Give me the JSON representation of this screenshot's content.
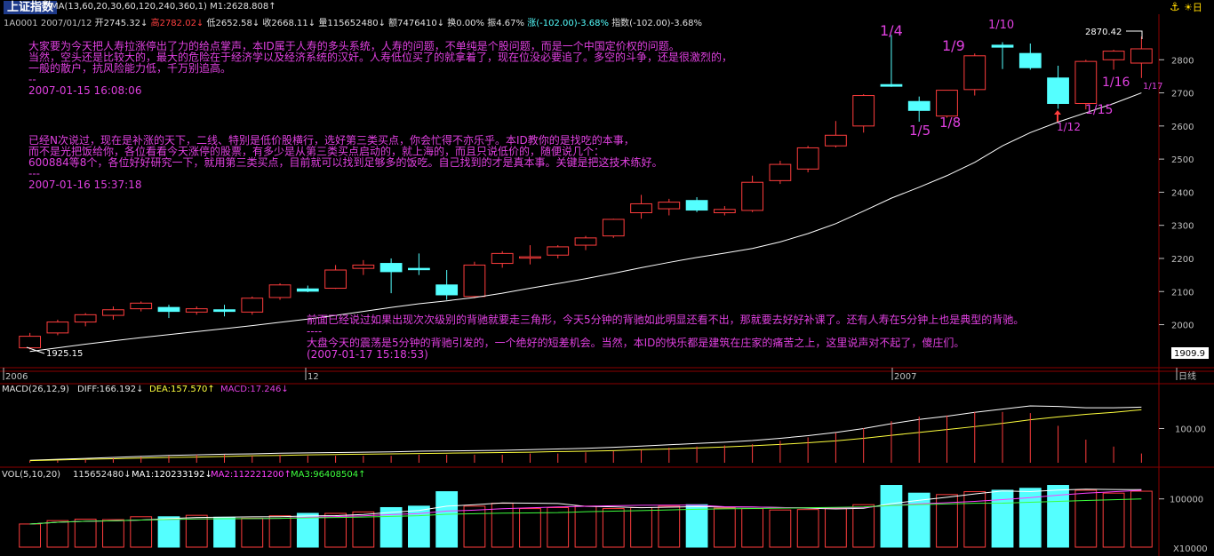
{
  "header": {
    "title": "上证指数",
    "ma_line": "MA(13,60,20,30,60,120,240,360,1) M1:2628.808↑",
    "ohlc_line": {
      "code_date": "1A0001 2007/01/12",
      "open": "开2745.32↓",
      "high": "高2782.02↓",
      "low": "低2652.58↓",
      "close": "收2668.11↓",
      "volume": "量115652480↓",
      "amount": "额7476410↓",
      "turnover": "换0.00%",
      "amplitude": "振4.67%",
      "change": "涨(-102.00)-3.68%",
      "index_change": "指数(-102.00)-3.68%"
    }
  },
  "toolbar_icons": [
    "anchor-icon",
    "day-icon"
  ],
  "toolbar_day_label": "日",
  "annotations": {
    "block1": [
      "大家要为今天把人寿拉涨停出了力的给点掌声，本ID属于人寿的多头系统，人寿的问题，不单纯是个股问题，而是一个中国定价权的问题。",
      "当然，空头还是比较大的，最大的危险在于经济学以及经济系统的汉奸。人寿低位买了的就拿着了，现在位没必要追了。多空的斗争，还是很激烈的，",
      "一般的散户，抗风险能力低，千万别追高。",
      "--",
      "2007-01-15 16:08:06"
    ],
    "block2": [
      "已经N次说过，现在是补涨的天下，二线、特别是低价股横行，选好第三类买点，你会忙得不亦乐乎。本ID教你的是找吃的本事，",
      "而不是光把饭给你，各位看看今天涨停的股票，有多少是从第三类买点启动的，就上海的，而且只说低价的，随便说几个：",
      "600884等8个，各位好好研究一下，就用第三类买点，目前就可以找到足够多的饭吃。自己找到的才是真本事。关键是把这技术练好。",
      "---",
      "2007-01-16 15:37:18"
    ],
    "block3": [
      "前面已经说过如果出现次次级别的背驰就要走三角形，今天5分钟的背驰如此明显还看不出，那就要去好好补课了。还有人寿在5分钟上也是典型的背驰。",
      "----",
      "大盘今天的震荡是5分钟的背驰引发的，一个绝好的短差机会。当然，本ID的快乐都是建筑在庄家的痛苦之上，这里说声对不起了，傻庄们。",
      "(2007-01-17 15:18:53)"
    ]
  },
  "date_labels": [
    "1/4",
    "1/9",
    "1/10",
    "1/5",
    "1/8",
    "1/16",
    "1/15",
    "1/12",
    "1/17"
  ],
  "price_labels": {
    "high_mark": "2870.42",
    "low_mark": "1925.15",
    "right_marker": "1909.9"
  },
  "x_axis": [
    "2006",
    "12",
    "2007",
    "日线"
  ],
  "macd_header": {
    "name": "MACD(26,12,9)",
    "diff": "DIFF:166.192↓",
    "dea": "DEA:157.570↑",
    "macd": "MACD:17.246↓"
  },
  "vol_header": {
    "name": "VOL(5,10,20)",
    "vol": "115652480↓",
    "ma1": "MA1:120233192↓",
    "ma2": "MA2:112221200↑",
    "ma3": "MA3:96408504↑"
  },
  "colors": {
    "up": "#ff3d3d",
    "down": "#54ffff",
    "ma": "#ffffff",
    "dea": "#ffff3d",
    "ma3": "#3dff3d",
    "annot": "#e040e0",
    "grid": "#8b0000",
    "axis": "#c0c0c0"
  },
  "chart_data": [
    {
      "type": "candlestick",
      "title": "上证指数",
      "ylim": [
        1870,
        2900
      ],
      "y_ticks": [
        2000,
        2100,
        2200,
        2300,
        2400,
        2500,
        2600,
        2700,
        2800
      ],
      "candles": [
        {
          "o": 1930,
          "h": 1975,
          "l": 1925,
          "c": 1965
        },
        {
          "o": 1975,
          "h": 2015,
          "l": 1968,
          "c": 2008
        },
        {
          "o": 2008,
          "h": 2035,
          "l": 1995,
          "c": 2030
        },
        {
          "o": 2028,
          "h": 2055,
          "l": 2015,
          "c": 2045
        },
        {
          "o": 2048,
          "h": 2070,
          "l": 2040,
          "c": 2065
        },
        {
          "o": 2052,
          "h": 2060,
          "l": 2020,
          "c": 2040
        },
        {
          "o": 2038,
          "h": 2055,
          "l": 2030,
          "c": 2048
        },
        {
          "o": 2045,
          "h": 2060,
          "l": 2025,
          "c": 2040
        },
        {
          "o": 2038,
          "h": 2085,
          "l": 2030,
          "c": 2080
        },
        {
          "o": 2082,
          "h": 2125,
          "l": 2075,
          "c": 2120
        },
        {
          "o": 2108,
          "h": 2118,
          "l": 2098,
          "c": 2101
        },
        {
          "o": 2110,
          "h": 2180,
          "l": 2108,
          "c": 2165
        },
        {
          "o": 2170,
          "h": 2195,
          "l": 2150,
          "c": 2180
        },
        {
          "o": 2185,
          "h": 2200,
          "l": 2095,
          "c": 2160
        },
        {
          "o": 2170,
          "h": 2215,
          "l": 2150,
          "c": 2168
        },
        {
          "o": 2120,
          "h": 2165,
          "l": 2075,
          "c": 2090
        },
        {
          "o": 2085,
          "h": 2190,
          "l": 2080,
          "c": 2180
        },
        {
          "o": 2185,
          "h": 2222,
          "l": 2172,
          "c": 2215
        },
        {
          "o": 2205,
          "h": 2240,
          "l": 2182,
          "c": 2205
        },
        {
          "o": 2210,
          "h": 2240,
          "l": 2200,
          "c": 2235
        },
        {
          "o": 2240,
          "h": 2268,
          "l": 2225,
          "c": 2262
        },
        {
          "o": 2268,
          "h": 2320,
          "l": 2262,
          "c": 2318
        },
        {
          "o": 2338,
          "h": 2392,
          "l": 2320,
          "c": 2365
        },
        {
          "o": 2350,
          "h": 2380,
          "l": 2330,
          "c": 2370
        },
        {
          "o": 2375,
          "h": 2385,
          "l": 2340,
          "c": 2346
        },
        {
          "o": 2338,
          "h": 2358,
          "l": 2330,
          "c": 2348
        },
        {
          "o": 2345,
          "h": 2450,
          "l": 2340,
          "c": 2430
        },
        {
          "o": 2435,
          "h": 2495,
          "l": 2425,
          "c": 2484
        },
        {
          "o": 2470,
          "h": 2540,
          "l": 2460,
          "c": 2534
        },
        {
          "o": 2540,
          "h": 2615,
          "l": 2535,
          "c": 2572
        },
        {
          "o": 2600,
          "h": 2696,
          "l": 2580,
          "c": 2692
        },
        {
          "o": 2725,
          "h": 2875,
          "l": 2718,
          "c": 2720
        },
        {
          "o": 2674,
          "h": 2689,
          "l": 2613,
          "c": 2647
        },
        {
          "o": 2630,
          "h": 2708,
          "l": 2625,
          "c": 2708
        },
        {
          "o": 2710,
          "h": 2819,
          "l": 2692,
          "c": 2812
        },
        {
          "o": 2844,
          "h": 2853,
          "l": 2772,
          "c": 2838
        },
        {
          "o": 2819,
          "h": 2849,
          "l": 2770,
          "c": 2776
        },
        {
          "o": 2745,
          "h": 2782,
          "l": 2652,
          "c": 2668
        },
        {
          "o": 2668,
          "h": 2800,
          "l": 2650,
          "c": 2795
        },
        {
          "o": 2800,
          "h": 2830,
          "l": 2770,
          "c": 2826
        },
        {
          "o": 2790,
          "h": 2870,
          "l": 2745,
          "c": 2833
        }
      ],
      "ma_line": [
        1919,
        1930,
        1941,
        1951,
        1961,
        1970,
        1979,
        1988,
        1997,
        2007,
        2017,
        2028,
        2040,
        2052,
        2063,
        2072,
        2082,
        2095,
        2110,
        2124,
        2139,
        2155,
        2172,
        2188,
        2203,
        2216,
        2230,
        2250,
        2275,
        2305,
        2343,
        2382,
        2415,
        2450,
        2490,
        2540,
        2580,
        2612,
        2640,
        2668,
        2700
      ]
    },
    {
      "type": "line",
      "title": "MACD(26,12,9)",
      "series": [
        {
          "name": "DIFF",
          "values": [
            2,
            5,
            8,
            11,
            14,
            17,
            19,
            21,
            22,
            24,
            25,
            26,
            27,
            28,
            30,
            31,
            32,
            33,
            35,
            37,
            39,
            42,
            46,
            50,
            54,
            58,
            63,
            70,
            78,
            88,
            100,
            115,
            128,
            138,
            150,
            160,
            170,
            168,
            164,
            164,
            166
          ]
        },
        {
          "name": "DEA",
          "values": [
            1,
            3,
            5,
            7,
            9,
            11,
            12,
            14,
            16,
            17,
            19,
            20,
            21,
            22,
            23,
            24,
            25,
            26,
            27,
            29,
            30,
            32,
            35,
            37,
            40,
            43,
            47,
            51,
            56,
            62,
            70,
            79,
            88,
            97,
            106,
            116,
            127,
            136,
            144,
            150,
            158
          ]
        }
      ],
      "ylim": [
        0,
        200
      ],
      "y_ticks": [
        100.0
      ]
    },
    {
      "type": "bar",
      "title": "VOL(5,10,20)",
      "volumes_k": [
        48,
        55,
        58,
        57,
        63,
        63,
        66,
        62,
        60,
        65,
        70,
        70,
        73,
        82,
        85,
        115,
        85,
        91,
        80,
        82,
        85,
        80,
        82,
        85,
        88,
        81,
        80,
        77,
        78,
        80,
        88,
        128,
        112,
        109,
        115,
        118,
        122,
        128,
        118,
        112,
        116
      ],
      "ylim": [
        0,
        140
      ],
      "y_ticks": [
        100000
      ],
      "unit": "X10000"
    }
  ]
}
